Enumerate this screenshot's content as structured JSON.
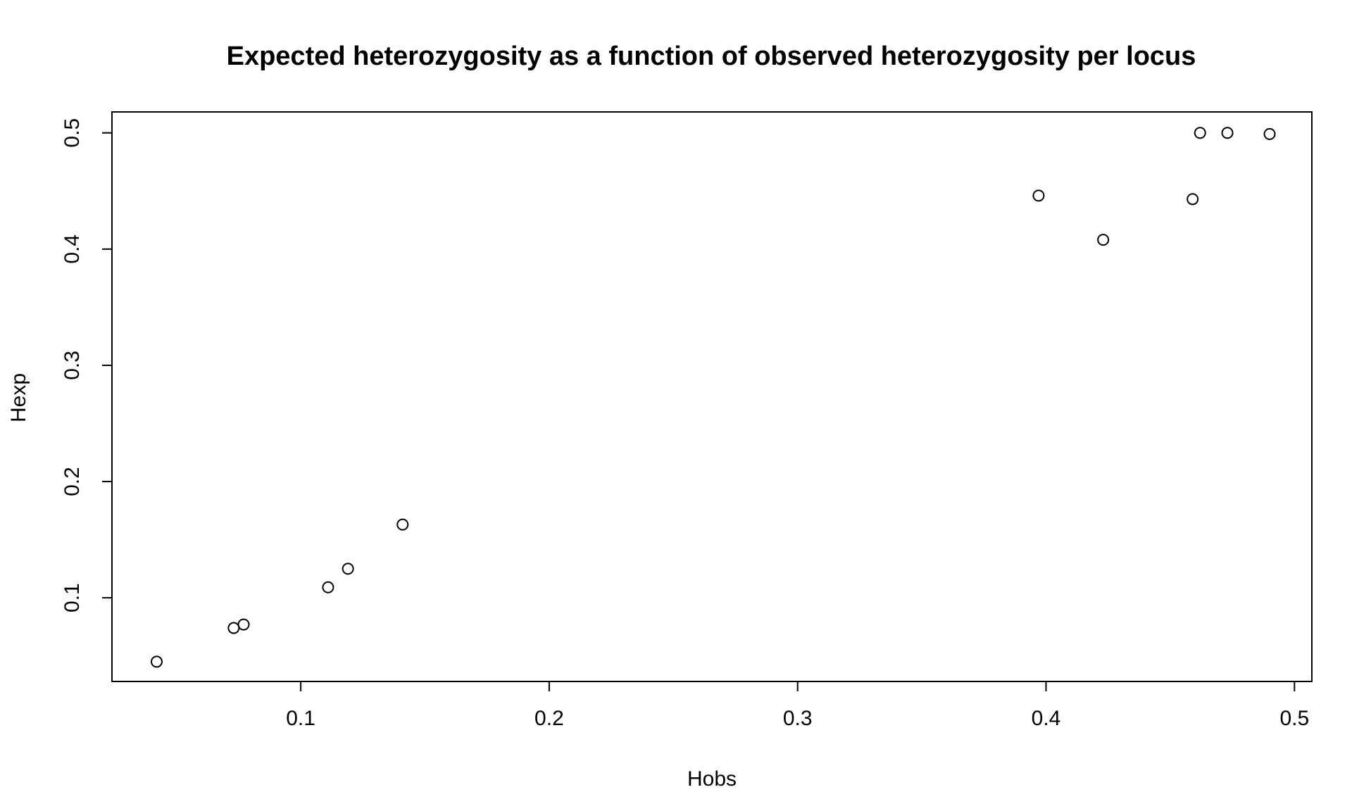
{
  "chart_data": {
    "type": "scatter",
    "title": "Expected heterozygosity as a function of observed heterozygosity per locus",
    "xlabel": "Hobs",
    "ylabel": "Hexp",
    "xlim": [
      0.024,
      0.507
    ],
    "ylim": [
      0.028,
      0.518
    ],
    "x_ticks": [
      0.1,
      0.2,
      0.3,
      0.4,
      0.5
    ],
    "x_tick_labels": [
      "0.1",
      "0.2",
      "0.3",
      "0.4",
      "0.5"
    ],
    "y_ticks": [
      0.1,
      0.2,
      0.3,
      0.4,
      0.5
    ],
    "y_tick_labels": [
      "0.1",
      "0.2",
      "0.3",
      "0.4",
      "0.5"
    ],
    "grid": false,
    "legend": "none",
    "marker": "open-circle",
    "points": [
      {
        "x": 0.042,
        "y": 0.045
      },
      {
        "x": 0.073,
        "y": 0.074
      },
      {
        "x": 0.077,
        "y": 0.077
      },
      {
        "x": 0.111,
        "y": 0.109
      },
      {
        "x": 0.119,
        "y": 0.125
      },
      {
        "x": 0.141,
        "y": 0.163
      },
      {
        "x": 0.397,
        "y": 0.446
      },
      {
        "x": 0.423,
        "y": 0.408
      },
      {
        "x": 0.459,
        "y": 0.443
      },
      {
        "x": 0.462,
        "y": 0.5
      },
      {
        "x": 0.473,
        "y": 0.5
      },
      {
        "x": 0.49,
        "y": 0.499
      }
    ]
  }
}
